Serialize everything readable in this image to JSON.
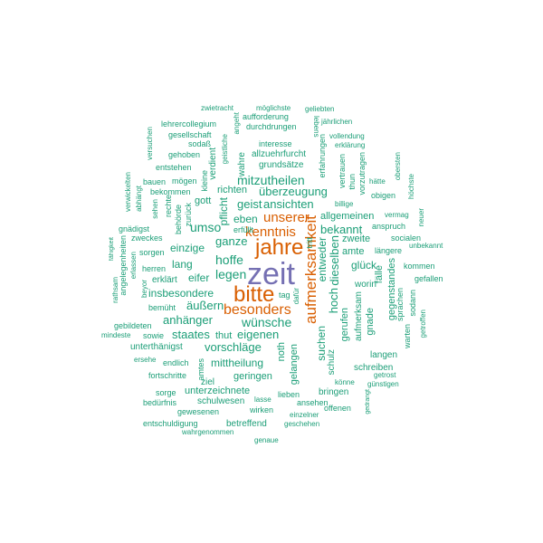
{
  "colors": {
    "purple": "#7570b3",
    "orange": "#d95f02",
    "teal": "#1b9e77"
  },
  "words": [
    {
      "id": "zeit",
      "text": "zeit",
      "color": "purple"
    },
    {
      "id": "jahre",
      "text": "jahre",
      "color": "orange"
    },
    {
      "id": "bitte",
      "text": "bitte",
      "color": "orange"
    },
    {
      "id": "aufmerksamkeit",
      "text": "aufmerksamkeit",
      "color": "orange"
    },
    {
      "id": "besonders",
      "text": "besonders",
      "color": "orange"
    },
    {
      "id": "kenntnis",
      "text": "kenntnis",
      "color": "orange"
    },
    {
      "id": "unserer",
      "text": "unserer",
      "color": "orange"
    },
    {
      "id": "zwietracht",
      "text": "zwietracht",
      "color": "teal"
    },
    {
      "id": "moeglichste",
      "text": "möglichste",
      "color": "teal"
    },
    {
      "id": "geliebten",
      "text": "geliebten",
      "color": "teal"
    },
    {
      "id": "aufforderung",
      "text": "aufforderung",
      "color": "teal"
    },
    {
      "id": "lehrercollegium",
      "text": "lehrercollegium",
      "color": "teal"
    },
    {
      "id": "durchdrungen",
      "text": "durchdrungen",
      "color": "teal"
    },
    {
      "id": "lebens",
      "text": "lebens",
      "color": "teal"
    },
    {
      "id": "jaehrlichen",
      "text": "jährlichen",
      "color": "teal"
    },
    {
      "id": "gesellschaft",
      "text": "gesellschaft",
      "color": "teal"
    },
    {
      "id": "angeht",
      "text": "angeht",
      "color": "teal"
    },
    {
      "id": "vollendung",
      "text": "vollendung",
      "color": "teal"
    },
    {
      "id": "sodass",
      "text": "sodaß",
      "color": "teal"
    },
    {
      "id": "versuchen",
      "text": "versuchen",
      "color": "teal"
    },
    {
      "id": "geistliche",
      "text": "geistliche",
      "color": "teal"
    },
    {
      "id": "interesse",
      "text": "interesse",
      "color": "teal"
    },
    {
      "id": "erklaerung",
      "text": "erklärung",
      "color": "teal"
    },
    {
      "id": "gehoben",
      "text": "gehoben",
      "color": "teal"
    },
    {
      "id": "allzuehrfurcht",
      "text": "allzuehrfurcht",
      "color": "teal"
    },
    {
      "id": "erfahrungen",
      "text": "erfahrungen",
      "color": "teal"
    },
    {
      "id": "entstehen",
      "text": "entstehen",
      "color": "teal"
    },
    {
      "id": "grundsaetze",
      "text": "grundsätze",
      "color": "teal"
    },
    {
      "id": "obersten",
      "text": "obersten",
      "color": "teal"
    },
    {
      "id": "vertrauen",
      "text": "vertrauen",
      "color": "teal"
    },
    {
      "id": "verdient",
      "text": "verdient",
      "color": "teal"
    },
    {
      "id": "wahre",
      "text": "wahre",
      "color": "teal"
    },
    {
      "id": "vorzutragen",
      "text": "vorzutragen",
      "color": "teal"
    },
    {
      "id": "hatte",
      "text": "hätte",
      "color": "teal"
    },
    {
      "id": "bauen",
      "text": "bauen",
      "color": "teal"
    },
    {
      "id": "moegen",
      "text": "mögen",
      "color": "teal"
    },
    {
      "id": "kleine",
      "text": "kleine",
      "color": "teal"
    },
    {
      "id": "mitzutheilen",
      "text": "mitzutheilen",
      "color": "teal"
    },
    {
      "id": "thun",
      "text": "thun",
      "color": "teal"
    },
    {
      "id": "verwickelten",
      "text": "verwickelten",
      "color": "teal"
    },
    {
      "id": "bekommen",
      "text": "bekommen",
      "color": "teal"
    },
    {
      "id": "richten",
      "text": "richten",
      "color": "teal"
    },
    {
      "id": "ueberzeugung",
      "text": "überzeugung",
      "color": "teal"
    },
    {
      "id": "obigen",
      "text": "obigen",
      "color": "teal"
    },
    {
      "id": "hoechste",
      "text": "höchste",
      "color": "teal"
    },
    {
      "id": "abhaengt",
      "text": "abhängt",
      "color": "teal"
    },
    {
      "id": "rechte",
      "text": "rechte",
      "color": "teal"
    },
    {
      "id": "gott",
      "text": "gott",
      "color": "teal"
    },
    {
      "id": "geist",
      "text": "geist",
      "color": "teal"
    },
    {
      "id": "ansichten",
      "text": "ansichten",
      "color": "teal"
    },
    {
      "id": "billige",
      "text": "billige",
      "color": "teal"
    },
    {
      "id": "sehen",
      "text": "sehen",
      "color": "teal"
    },
    {
      "id": "zurueck",
      "text": "zurück",
      "color": "teal"
    },
    {
      "id": "pflicht",
      "text": "pflicht",
      "color": "teal"
    },
    {
      "id": "allgemeinen",
      "text": "allgemeinen",
      "color": "teal"
    },
    {
      "id": "vermag",
      "text": "vermag",
      "color": "teal"
    },
    {
      "id": "neuer",
      "text": "neuer",
      "color": "teal"
    },
    {
      "id": "behoerde",
      "text": "behörde",
      "color": "teal"
    },
    {
      "id": "eben",
      "text": "eben",
      "color": "teal"
    },
    {
      "id": "anspruch",
      "text": "anspruch",
      "color": "teal"
    },
    {
      "id": "gnaedigst",
      "text": "gnädigst",
      "color": "teal"
    },
    {
      "id": "erfuellt",
      "text": "erfüllt",
      "color": "teal"
    },
    {
      "id": "bekannt",
      "text": "bekannt",
      "color": "teal"
    },
    {
      "id": "zweckes",
      "text": "zweckes",
      "color": "teal"
    },
    {
      "id": "umso",
      "text": "umso",
      "color": "teal"
    },
    {
      "id": "ganze",
      "text": "ganze",
      "color": "teal"
    },
    {
      "id": "zweite",
      "text": "zweite",
      "color": "teal"
    },
    {
      "id": "socialen",
      "text": "socialen",
      "color": "teal"
    },
    {
      "id": "unbekannt",
      "text": "unbekannt",
      "color": "teal"
    },
    {
      "id": "faehigkeit",
      "text": "fähigkeit",
      "color": "teal"
    },
    {
      "id": "einzige",
      "text": "einzige",
      "color": "teal"
    },
    {
      "id": "tritt",
      "text": "tritt",
      "color": "teal"
    },
    {
      "id": "sorgen",
      "text": "sorgen",
      "color": "teal"
    },
    {
      "id": "amte",
      "text": "amte",
      "color": "teal"
    },
    {
      "id": "laengere",
      "text": "längere",
      "color": "teal"
    },
    {
      "id": "angelegenheiten",
      "text": "angelegenheiten",
      "color": "teal"
    },
    {
      "id": "hoffe",
      "text": "hoffe",
      "color": "teal"
    },
    {
      "id": "entweder",
      "text": "entweder",
      "color": "teal"
    },
    {
      "id": "lang",
      "text": "lang",
      "color": "teal"
    },
    {
      "id": "glueck",
      "text": "glück",
      "color": "teal"
    },
    {
      "id": "kommen",
      "text": "kommen",
      "color": "teal"
    },
    {
      "id": "herren",
      "text": "herren",
      "color": "teal"
    },
    {
      "id": "dieselben",
      "text": "dieselben",
      "color": "teal"
    },
    {
      "id": "erlassen",
      "text": "erlassen",
      "color": "teal"
    },
    {
      "id": "eifer",
      "text": "eifer",
      "color": "teal"
    },
    {
      "id": "legen",
      "text": "legen",
      "color": "teal"
    },
    {
      "id": "faelle",
      "text": "fälle",
      "color": "teal"
    },
    {
      "id": "gegenstandes",
      "text": "gegenstandes",
      "color": "teal"
    },
    {
      "id": "gefallen",
      "text": "gefallen",
      "color": "teal"
    },
    {
      "id": "rathsam",
      "text": "rathsam",
      "color": "teal"
    },
    {
      "id": "erklaert",
      "text": "erklärt",
      "color": "teal"
    },
    {
      "id": "worin",
      "text": "worin",
      "color": "teal"
    },
    {
      "id": "beyor",
      "text": "beyor",
      "color": "teal"
    },
    {
      "id": "insbesondere",
      "text": "insbesondere",
      "color": "teal"
    },
    {
      "id": "hoch",
      "text": "hoch",
      "color": "teal"
    },
    {
      "id": "sodann",
      "text": "sodann",
      "color": "teal"
    },
    {
      "id": "aeussern",
      "text": "äußern",
      "color": "teal"
    },
    {
      "id": "dafuer",
      "text": "dafür",
      "color": "teal"
    },
    {
      "id": "tag",
      "text": "tag",
      "color": "teal"
    },
    {
      "id": "sprachen",
      "text": "sprachen",
      "color": "teal"
    },
    {
      "id": "bemueht",
      "text": "bemüht",
      "color": "teal"
    },
    {
      "id": "gerufen",
      "text": "gerufen",
      "color": "teal"
    },
    {
      "id": "aufmerksam",
      "text": "aufmerksam",
      "color": "teal"
    },
    {
      "id": "anhaenger",
      "text": "anhänger",
      "color": "teal"
    },
    {
      "id": "wuensche",
      "text": "wünsche",
      "color": "teal"
    },
    {
      "id": "gebildeten",
      "text": "gebildeten",
      "color": "teal"
    },
    {
      "id": "gnade",
      "text": "gnade",
      "color": "teal"
    },
    {
      "id": "mindeste",
      "text": "mindeste",
      "color": "teal"
    },
    {
      "id": "sowie",
      "text": "sowie",
      "color": "teal"
    },
    {
      "id": "staates",
      "text": "staates",
      "color": "teal"
    },
    {
      "id": "thut",
      "text": "thut",
      "color": "teal"
    },
    {
      "id": "eigenen",
      "text": "eigenen",
      "color": "teal"
    },
    {
      "id": "warten",
      "text": "warten",
      "color": "teal"
    },
    {
      "id": "getroffen",
      "text": "getroffen",
      "color": "teal"
    },
    {
      "id": "suchen",
      "text": "suchen",
      "color": "teal"
    },
    {
      "id": "unterthaenigst",
      "text": "unterthänigst",
      "color": "teal"
    },
    {
      "id": "vorschlaege",
      "text": "vorschläge",
      "color": "teal"
    },
    {
      "id": "noth",
      "text": "noth",
      "color": "teal"
    },
    {
      "id": "langen",
      "text": "langen",
      "color": "teal"
    },
    {
      "id": "ersehe",
      "text": "ersehe",
      "color": "teal"
    },
    {
      "id": "endlich",
      "text": "endlich",
      "color": "teal"
    },
    {
      "id": "mittheilung",
      "text": "mittheilung",
      "color": "teal"
    },
    {
      "id": "schulz",
      "text": "schulz",
      "color": "teal"
    },
    {
      "id": "schreiben",
      "text": "schreiben",
      "color": "teal"
    },
    {
      "id": "gelangen",
      "text": "gelangen",
      "color": "teal"
    },
    {
      "id": "ziel",
      "text": "ziel",
      "color": "teal"
    },
    {
      "id": "fortschritte",
      "text": "fortschritte",
      "color": "teal"
    },
    {
      "id": "amtes",
      "text": "amtes",
      "color": "teal"
    },
    {
      "id": "geringen",
      "text": "geringen",
      "color": "teal"
    },
    {
      "id": "getrost",
      "text": "getrost",
      "color": "teal"
    },
    {
      "id": "koenne",
      "text": "könne",
      "color": "teal"
    },
    {
      "id": "guenstigen",
      "text": "günstigen",
      "color": "teal"
    },
    {
      "id": "sorge",
      "text": "sorge",
      "color": "teal"
    },
    {
      "id": "unterzeichnete",
      "text": "unterzeichnete",
      "color": "teal"
    },
    {
      "id": "bringen",
      "text": "bringen",
      "color": "teal"
    },
    {
      "id": "beduerfnis",
      "text": "bedürfnis",
      "color": "teal"
    },
    {
      "id": "schulwesen",
      "text": "schulwesen",
      "color": "teal"
    },
    {
      "id": "lasse",
      "text": "lasse",
      "color": "teal"
    },
    {
      "id": "lieben",
      "text": "lieben",
      "color": "teal"
    },
    {
      "id": "ansehen",
      "text": "ansehen",
      "color": "teal"
    },
    {
      "id": "gedrangt",
      "text": "gedrangt",
      "color": "teal"
    },
    {
      "id": "gewesenen",
      "text": "gewesenen",
      "color": "teal"
    },
    {
      "id": "wirken",
      "text": "wirken",
      "color": "teal"
    },
    {
      "id": "offenen",
      "text": "offenen",
      "color": "teal"
    },
    {
      "id": "einzelner",
      "text": "einzelner",
      "color": "teal"
    },
    {
      "id": "entschuldigung",
      "text": "entschuldigung",
      "color": "teal"
    },
    {
      "id": "betreffend",
      "text": "betreffend",
      "color": "teal"
    },
    {
      "id": "geschehen",
      "text": "geschehen",
      "color": "teal"
    },
    {
      "id": "wahrgenommen",
      "text": "wahrgenommen",
      "color": "teal"
    },
    {
      "id": "genaue",
      "text": "genaue",
      "color": "teal"
    }
  ]
}
